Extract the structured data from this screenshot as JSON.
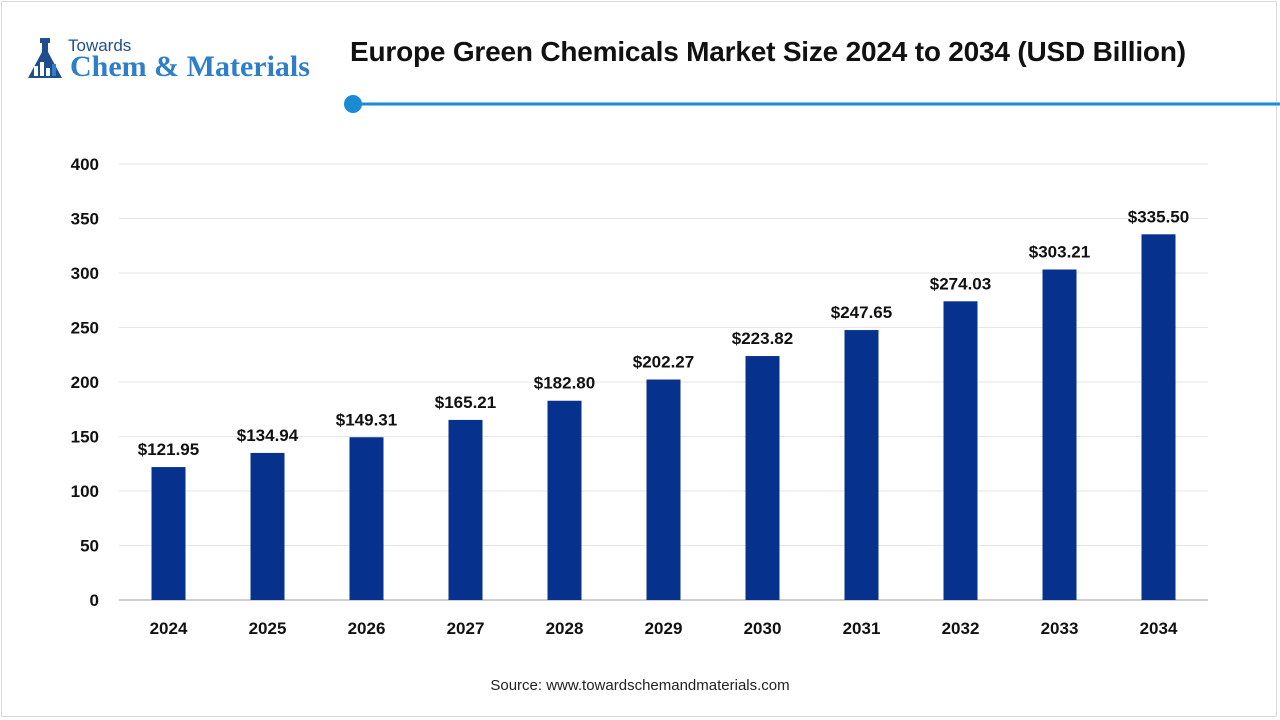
{
  "brand": {
    "logo_top": "Towards",
    "logo_main": "Chem & Materials"
  },
  "colors": {
    "bar": "#06318c",
    "accent": "#1a8ad4",
    "grid": "#e6e6e6"
  },
  "chart_data": {
    "type": "bar",
    "title": "Europe Green Chemicals Market Size 2024 to 2034 (USD Billion)",
    "xlabel": "",
    "ylabel": "",
    "categories": [
      "2024",
      "2025",
      "2026",
      "2027",
      "2028",
      "2029",
      "2030",
      "2031",
      "2032",
      "2033",
      "2034"
    ],
    "values": [
      121.95,
      134.94,
      149.31,
      165.21,
      182.8,
      202.27,
      223.82,
      247.65,
      274.03,
      303.21,
      335.5
    ],
    "value_labels": [
      "$121.95",
      "$134.94",
      "$149.31",
      "$165.21",
      "$182.80",
      "$202.27",
      "$223.82",
      "$247.65",
      "$274.03",
      "$303.21",
      "$335.50"
    ],
    "yticks": [
      0,
      50,
      100,
      150,
      200,
      250,
      300,
      350,
      400
    ],
    "ylim": [
      0,
      400
    ],
    "grid": true,
    "legend": "none"
  },
  "source": "Source: www.towardschemandmaterials.com"
}
